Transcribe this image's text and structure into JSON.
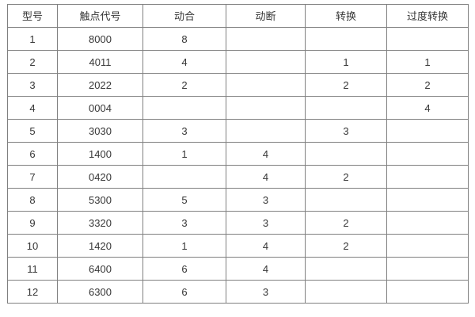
{
  "colors": {
    "border": "#808080",
    "text": "#363636",
    "background": "#ffffff"
  },
  "table": {
    "columns": [
      {
        "label": "型号"
      },
      {
        "label": "触点代号"
      },
      {
        "label": "动合"
      },
      {
        "label": "动断"
      },
      {
        "label": "转换"
      },
      {
        "label": "过度转换"
      }
    ],
    "rows": [
      [
        "1",
        "8000",
        "8",
        "",
        "",
        ""
      ],
      [
        "2",
        "4011",
        "4",
        "",
        "1",
        "1"
      ],
      [
        "3",
        "2022",
        "2",
        "",
        "2",
        "2"
      ],
      [
        "4",
        "0004",
        "",
        "",
        "",
        "4"
      ],
      [
        "5",
        "3030",
        "3",
        "",
        "3",
        ""
      ],
      [
        "6",
        "1400",
        "1",
        "4",
        "",
        ""
      ],
      [
        "7",
        "0420",
        "",
        "4",
        "2",
        ""
      ],
      [
        "8",
        "5300",
        "5",
        "3",
        "",
        ""
      ],
      [
        "9",
        "3320",
        "3",
        "3",
        "2",
        ""
      ],
      [
        "10",
        "1420",
        "1",
        "4",
        "2",
        ""
      ],
      [
        "11",
        "6400",
        "6",
        "4",
        "",
        ""
      ],
      [
        "12",
        "6300",
        "6",
        "3",
        "",
        ""
      ]
    ]
  }
}
